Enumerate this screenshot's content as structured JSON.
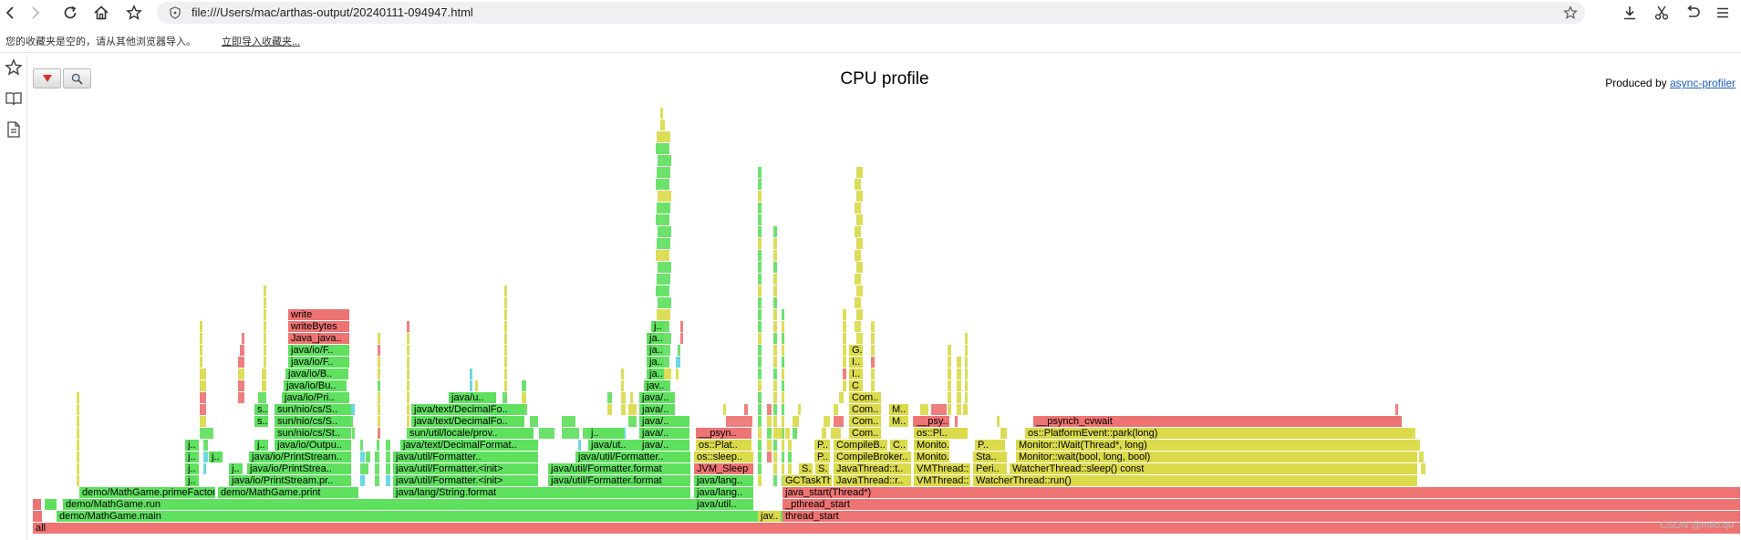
{
  "browser": {
    "url": "file:///Users/mac/arthas-output/20240111-094947.html",
    "bookmarks_notice": "您的收藏夹是空的，请从其他浏览器导入。",
    "bookmarks_import_link": "立即导入收藏夹..."
  },
  "page": {
    "title": "CPU profile",
    "produced_by_label": "Produced by",
    "produced_by_link": "async-profiler"
  },
  "watermark": "CSDN @milo.qu",
  "colors": {
    "red": "#ee7373",
    "green": "#5fe05f",
    "yellow": "#dada4a",
    "aqua": "#5fd6e0"
  },
  "flame_frames": [
    {
      "t": "all",
      "c": "r"
    },
    {
      "t": "",
      "c": "r"
    },
    {
      "t": "demo/MathGame.main",
      "c": "g"
    },
    {
      "t": "jav..",
      "c": "y"
    },
    {
      "t": "thread_start",
      "c": "r"
    },
    {
      "t": "",
      "c": "r"
    },
    {
      "t": "",
      "c": "g"
    },
    {
      "t": "demo/MathGame.run",
      "c": "g"
    },
    {
      "t": "java/util..",
      "c": "g"
    },
    {
      "t": "_pthread_start",
      "c": "r"
    },
    {
      "t": "demo/MathGame.primeFactors",
      "c": "g"
    },
    {
      "t": "demo/MathGame.print",
      "c": "g"
    },
    {
      "t": "java/lang/String.format",
      "c": "g"
    },
    {
      "t": "java/lang..",
      "c": "g"
    },
    {
      "t": "java_start(Thread*)",
      "c": "r"
    },
    {
      "t": "j..",
      "c": "g"
    },
    {
      "t": "java/io/PrintStream.pr..",
      "c": "g"
    },
    {
      "t": "java/util/Formatter.<init>",
      "c": "g"
    },
    {
      "t": "java/util/Formatter.format",
      "c": "g"
    },
    {
      "t": "java/lang..",
      "c": "g"
    },
    {
      "t": "GCTaskTh..",
      "c": "y"
    },
    {
      "t": "JavaThread::r..",
      "c": "y"
    },
    {
      "t": "VMThread::..",
      "c": "y"
    },
    {
      "t": "WatcherThread::run()",
      "c": "y"
    },
    {
      "t": "j..",
      "c": "g"
    },
    {
      "t": "j..",
      "c": "g"
    },
    {
      "t": "java/io/PrintStrea..",
      "c": "g"
    },
    {
      "t": "java/util/Formatter.<init>",
      "c": "g"
    },
    {
      "t": "java/util/Formatter.format",
      "c": "g"
    },
    {
      "t": "JVM_Sleep",
      "c": "r"
    },
    {
      "t": "S..",
      "c": "y"
    },
    {
      "t": "S..",
      "c": "y"
    },
    {
      "t": "JavaThread::t..",
      "c": "y"
    },
    {
      "t": "VMThread::..",
      "c": "y"
    },
    {
      "t": "Peri..",
      "c": "y"
    },
    {
      "t": "WatcherThread::sleep() const",
      "c": "y"
    },
    {
      "t": "j..",
      "c": "g"
    },
    {
      "t": "j..",
      "c": "g"
    },
    {
      "t": "java/io/PrintStream..",
      "c": "g"
    },
    {
      "t": "java/util/Formatter..",
      "c": "g"
    },
    {
      "t": "java/util/Formatter..",
      "c": "g"
    },
    {
      "t": "os::sleep..",
      "c": "y"
    },
    {
      "t": "P..",
      "c": "y"
    },
    {
      "t": "CompileBroker..",
      "c": "y"
    },
    {
      "t": "Monito..",
      "c": "y"
    },
    {
      "t": "Sta..",
      "c": "y"
    },
    {
      "t": "Monitor::wait(bool, long, bool)",
      "c": "y"
    },
    {
      "t": "j..",
      "c": "g"
    },
    {
      "t": "j..",
      "c": "g"
    },
    {
      "t": "java/io/Outpu..",
      "c": "g"
    },
    {
      "t": "java/text/DecimalFormat..",
      "c": "g"
    },
    {
      "t": "java/ut..",
      "c": "g"
    },
    {
      "t": "java/..",
      "c": "g"
    },
    {
      "t": "os::Plat..",
      "c": "y"
    },
    {
      "t": "P..",
      "c": "y"
    },
    {
      "t": "CompileB..",
      "c": "y"
    },
    {
      "t": "C..",
      "c": "y"
    },
    {
      "t": "Monito..",
      "c": "y"
    },
    {
      "t": "P..",
      "c": "y"
    },
    {
      "t": "Monitor::IWait(Thread*, long)",
      "c": "y"
    },
    {
      "t": "sun/nio/cs/St..",
      "c": "g"
    },
    {
      "t": "sun/util/locale/prov..",
      "c": "g"
    },
    {
      "t": "j..",
      "c": "g"
    },
    {
      "t": "java/..",
      "c": "g"
    },
    {
      "t": "__psyn..",
      "c": "r"
    },
    {
      "t": "Com..",
      "c": "y"
    },
    {
      "t": "os::Pl..",
      "c": "y"
    },
    {
      "t": "os::PlatformEvent::park(long)",
      "c": "y"
    },
    {
      "t": "s..",
      "c": "g"
    },
    {
      "t": "sun/nio/cs/S..",
      "c": "g"
    },
    {
      "t": "java/text/DecimalFo..",
      "c": "g"
    },
    {
      "t": "java/..",
      "c": "g"
    },
    {
      "t": "Com..",
      "c": "y"
    },
    {
      "t": "M..",
      "c": "y"
    },
    {
      "t": "__psy..",
      "c": "r"
    },
    {
      "t": "__psynch_cvwait",
      "c": "r"
    },
    {
      "t": "s..",
      "c": "g"
    },
    {
      "t": "sun/nio/cs/S..",
      "c": "g"
    },
    {
      "t": "java/text/DecimalFo..",
      "c": "g"
    },
    {
      "t": "java/..",
      "c": "g"
    },
    {
      "t": "Com..",
      "c": "y"
    },
    {
      "t": "M..",
      "c": "y"
    },
    {
      "t": "java/io/Pri..",
      "c": "g"
    },
    {
      "t": "java/u..",
      "c": "g"
    },
    {
      "t": "java/..",
      "c": "g"
    },
    {
      "t": "Com..",
      "c": "y"
    },
    {
      "t": "java/io/Bu..",
      "c": "g"
    },
    {
      "t": "jav..",
      "c": "g"
    },
    {
      "t": "C..",
      "c": "y"
    },
    {
      "t": "java/io/B..",
      "c": "g"
    },
    {
      "t": "ja..",
      "c": "g"
    },
    {
      "t": "I..",
      "c": "y"
    },
    {
      "t": "java/io/F..",
      "c": "g"
    },
    {
      "t": "ja..",
      "c": "g"
    },
    {
      "t": "I..",
      "c": "y"
    },
    {
      "t": "java/io/F..",
      "c": "g"
    },
    {
      "t": "ja..",
      "c": "g"
    },
    {
      "t": "G..",
      "c": "y"
    },
    {
      "t": "Java_java..",
      "c": "r"
    },
    {
      "t": "ja..",
      "c": "g"
    },
    {
      "t": "writeBytes",
      "c": "r"
    },
    {
      "t": "j..",
      "c": "g"
    },
    {
      "t": "write",
      "c": "r"
    }
  ]
}
